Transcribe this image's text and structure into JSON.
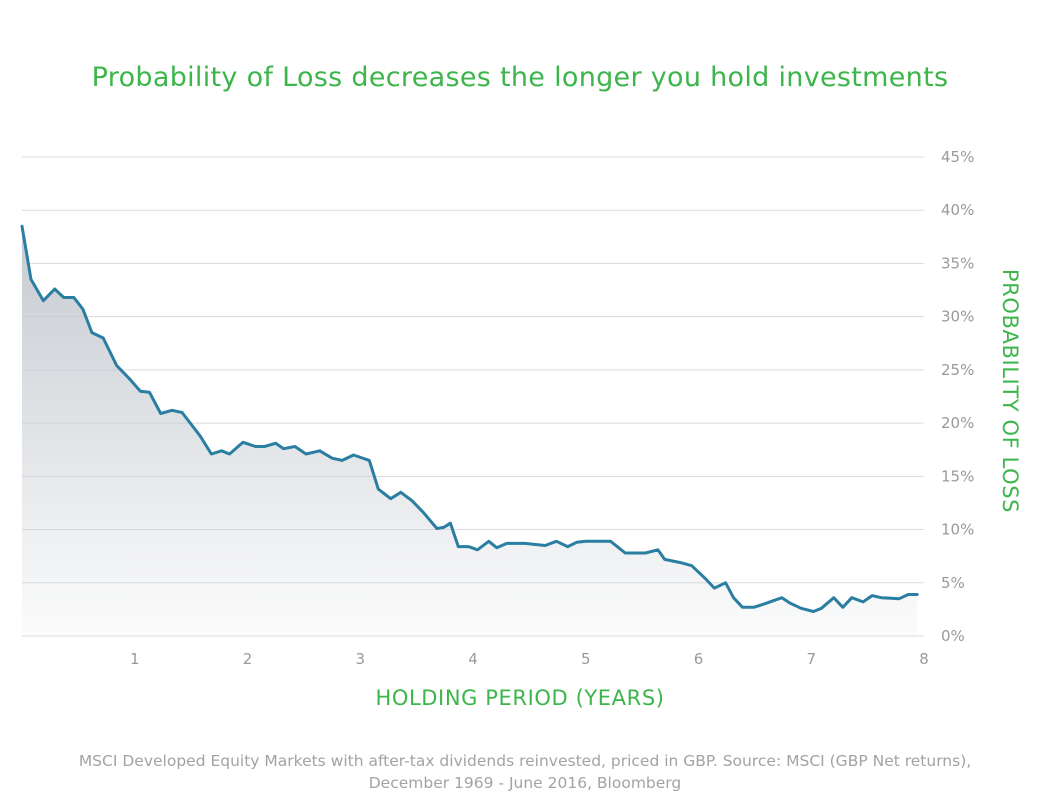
{
  "chart_data": {
    "type": "area",
    "title": "Probability of Loss decreases the longer you hold investments",
    "xlabel": "HOLDING PERIOD (YEARS)",
    "ylabel": "PROBABILITY OF LOSS",
    "xlim": [
      0,
      8
    ],
    "ylim": [
      0,
      45
    ],
    "x_ticks": [
      1,
      2,
      3,
      4,
      5,
      6,
      7,
      8
    ],
    "y_ticks": [
      0,
      5,
      10,
      15,
      20,
      25,
      30,
      35,
      40,
      45
    ],
    "y_tick_labels": [
      "0%",
      "5%",
      "10%",
      "15%",
      "20%",
      "25%",
      "30%",
      "35%",
      "40%",
      "45%"
    ],
    "y_axis_side": "right",
    "grid": "horizontal",
    "line_color": "#2a7ea1",
    "series": [
      {
        "x": [
          0.0,
          0.08,
          0.19,
          0.29,
          0.37,
          0.46,
          0.54,
          0.62,
          0.72,
          0.84,
          0.95,
          1.05,
          1.13,
          1.23,
          1.33,
          1.42,
          1.58,
          1.68,
          1.77,
          1.84,
          1.96,
          2.07,
          2.15,
          2.25,
          2.32,
          2.42,
          2.52,
          2.64,
          2.75,
          2.84,
          2.94,
          3.08,
          3.16,
          3.27,
          3.36,
          3.46,
          3.56,
          3.68,
          3.74,
          3.8,
          3.87,
          3.96,
          4.04,
          4.14,
          4.21,
          4.3,
          4.37,
          4.46,
          4.64,
          4.74,
          4.84,
          4.92,
          5.0,
          5.22,
          5.35,
          5.42,
          5.53,
          5.64,
          5.7,
          5.84,
          5.94,
          6.06,
          6.14,
          6.24,
          6.31,
          6.39,
          6.49,
          6.58,
          6.74,
          6.81,
          6.91,
          7.02,
          7.09,
          7.2,
          7.28,
          7.36,
          7.46,
          7.54,
          7.62,
          7.78,
          7.86,
          7.94
        ],
        "y": [
          38.5,
          33.5,
          31.5,
          32.6,
          31.8,
          31.8,
          30.7,
          28.5,
          28.0,
          25.4,
          24.2,
          23.0,
          22.9,
          20.9,
          21.2,
          21.0,
          18.8,
          17.1,
          17.4,
          17.1,
          18.2,
          17.8,
          17.8,
          18.1,
          17.6,
          17.8,
          17.1,
          17.4,
          16.7,
          16.5,
          17.0,
          16.5,
          13.8,
          12.9,
          13.5,
          12.7,
          11.6,
          10.1,
          10.2,
          10.6,
          8.4,
          8.4,
          8.1,
          8.9,
          8.3,
          8.7,
          8.7,
          8.7,
          8.5,
          8.9,
          8.4,
          8.8,
          8.9,
          8.9,
          7.8,
          7.8,
          7.8,
          8.1,
          7.2,
          6.9,
          6.6,
          5.4,
          4.5,
          5.0,
          3.6,
          2.7,
          2.7,
          3.0,
          3.6,
          3.1,
          2.6,
          2.3,
          2.6,
          3.6,
          2.7,
          3.6,
          3.2,
          3.8,
          3.6,
          3.5,
          3.9,
          3.9
        ]
      }
    ],
    "note": "MSCI Developed Equity Markets with after-tax dividends reinvested, priced in GBP. Source: MSCI (GBP Net returns), December 1969 - June 2016, Bloomberg"
  }
}
